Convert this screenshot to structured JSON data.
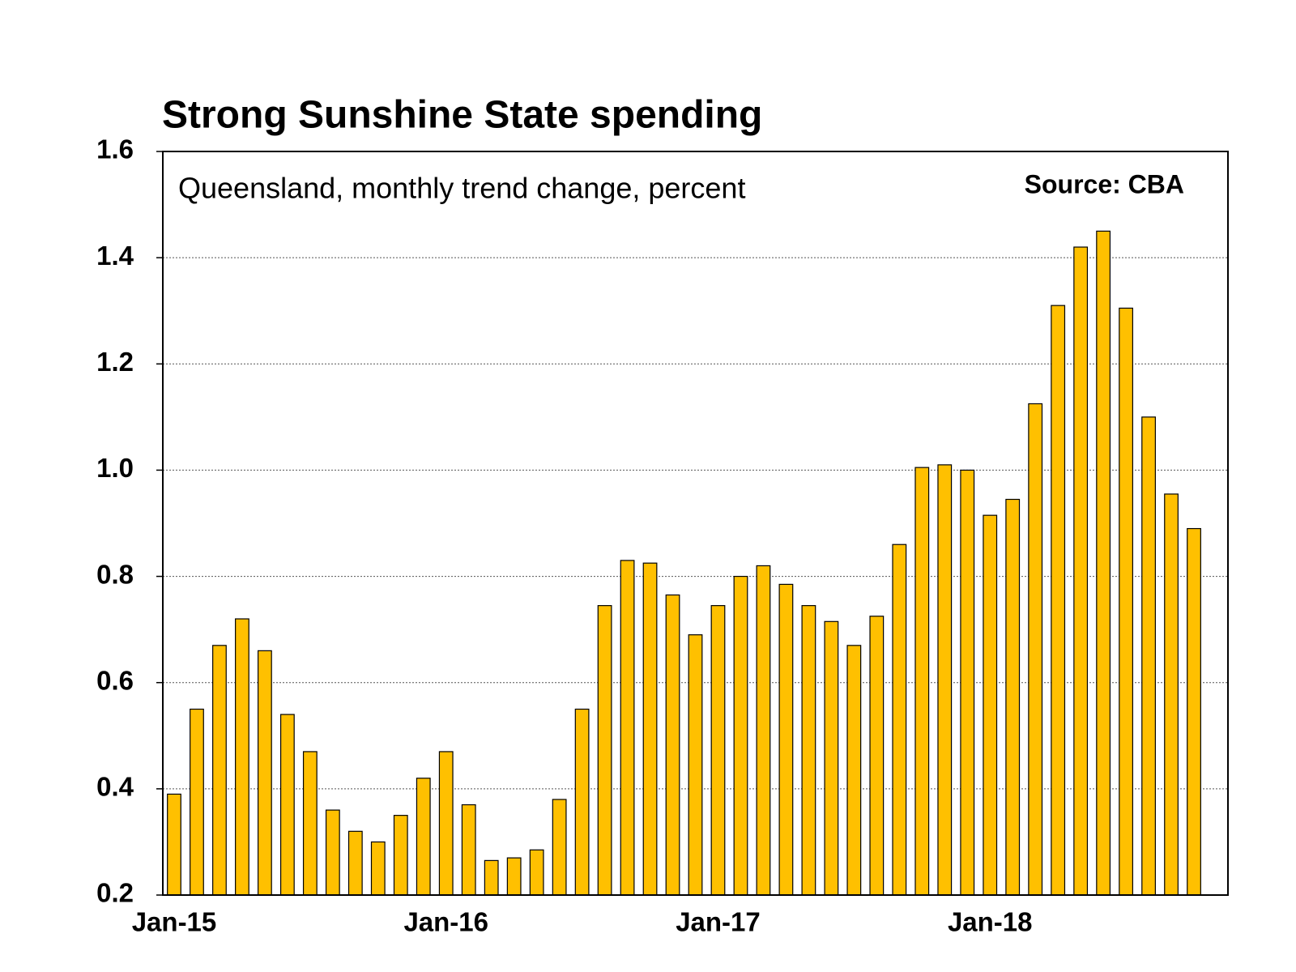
{
  "chart_data": {
    "type": "bar",
    "title": "Strong Sunshine State spending",
    "subtitle": "Queensland, monthly trend change, percent",
    "source": "Source: CBA",
    "categories": [
      "Jan-15",
      null,
      null,
      null,
      null,
      null,
      null,
      null,
      null,
      null,
      null,
      null,
      "Jan-16",
      null,
      null,
      null,
      null,
      null,
      null,
      null,
      null,
      null,
      null,
      null,
      "Jan-17",
      null,
      null,
      null,
      null,
      null,
      null,
      null,
      null,
      null,
      null,
      null,
      "Jan-18",
      null,
      null,
      null,
      null,
      null,
      null,
      null,
      null,
      null
    ],
    "values": [
      0.39,
      0.55,
      0.67,
      0.72,
      0.66,
      0.54,
      0.47,
      0.36,
      0.32,
      0.3,
      0.35,
      0.42,
      0.47,
      0.37,
      0.265,
      0.27,
      0.285,
      0.38,
      0.55,
      0.745,
      0.83,
      0.825,
      0.765,
      0.69,
      0.745,
      0.8,
      0.82,
      0.785,
      0.745,
      0.715,
      0.67,
      0.725,
      0.86,
      1.005,
      1.01,
      1.0,
      0.915,
      0.945,
      1.125,
      1.31,
      1.42,
      1.45,
      1.305,
      1.1,
      0.955,
      0.89
    ],
    "color": "#FFC000",
    "ylim": [
      0.2,
      1.6
    ],
    "yticks": [
      0.2,
      0.4,
      0.6,
      0.8,
      {
        "value": 1,
        "label": "1.0"
      },
      1.2,
      1.4,
      1.6
    ],
    "grid": true
  }
}
